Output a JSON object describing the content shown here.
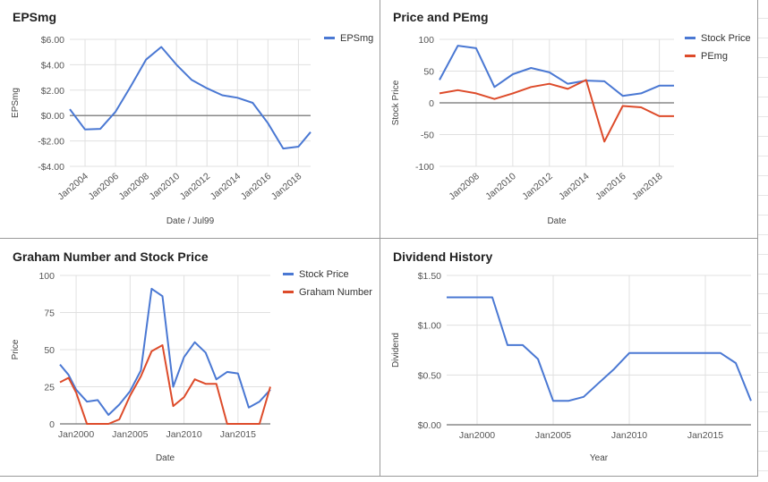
{
  "colors": {
    "blue": "#4a78d3",
    "red": "#dd4b2a"
  },
  "chart_data": [
    {
      "id": "eps",
      "type": "line",
      "title": "EPSmg",
      "xlabel": "Date / Jul99",
      "ylabel": "EPSmg",
      "xlim": [
        2003,
        2018.8
      ],
      "ylim": [
        -4,
        6
      ],
      "y_ticks": [
        {
          "v": 6,
          "label": "$6.00"
        },
        {
          "v": 4,
          "label": "$4.00"
        },
        {
          "v": 2,
          "label": "$2.00"
        },
        {
          "v": 0,
          "label": "$0.00"
        },
        {
          "v": -2,
          "label": "-$2.00"
        },
        {
          "v": -4,
          "label": "-$4.00"
        }
      ],
      "x_ticks": [
        {
          "v": 2004,
          "label": "Jan2004"
        },
        {
          "v": 2006,
          "label": "Jan2006"
        },
        {
          "v": 2008,
          "label": "Jan2008"
        },
        {
          "v": 2010,
          "label": "Jan2010"
        },
        {
          "v": 2012,
          "label": "Jan2012"
        },
        {
          "v": 2014,
          "label": "Jan2014"
        },
        {
          "v": 2016,
          "label": "Jan2016"
        },
        {
          "v": 2018,
          "label": "Jan2018"
        }
      ],
      "x_tick_rotate": true,
      "zero_line": true,
      "series": [
        {
          "name": "EPSmg",
          "color": "#4a78d3",
          "x": [
            2003,
            2004,
            2005,
            2006,
            2007,
            2008,
            2009,
            2010,
            2011,
            2012,
            2013,
            2014,
            2015,
            2016,
            2017,
            2018,
            2018.8
          ],
          "y": [
            0.5,
            -1.1,
            -1.05,
            0.3,
            2.3,
            4.4,
            5.4,
            4.0,
            2.8,
            2.15,
            1.6,
            1.4,
            1.0,
            -0.6,
            -2.6,
            -2.45,
            -1.3
          ]
        }
      ]
    },
    {
      "id": "pe",
      "type": "line",
      "title": "Price and PEmg",
      "xlabel": "Date",
      "ylabel": "Stock Price",
      "xlim": [
        2006,
        2018.8
      ],
      "ylim": [
        -100,
        100
      ],
      "y_ticks": [
        {
          "v": 100,
          "label": "100"
        },
        {
          "v": 50,
          "label": "50"
        },
        {
          "v": 0,
          "label": "0"
        },
        {
          "v": -50,
          "label": "-50"
        },
        {
          "v": -100,
          "label": "-100"
        }
      ],
      "x_ticks": [
        {
          "v": 2008,
          "label": "Jan2008"
        },
        {
          "v": 2010,
          "label": "Jan2010"
        },
        {
          "v": 2012,
          "label": "Jan2012"
        },
        {
          "v": 2014,
          "label": "Jan2014"
        },
        {
          "v": 2016,
          "label": "Jan2016"
        },
        {
          "v": 2018,
          "label": "Jan2018"
        }
      ],
      "x_tick_rotate": true,
      "zero_line": true,
      "series": [
        {
          "name": "Stock Price",
          "color": "#4a78d3",
          "x": [
            2006,
            2007,
            2008,
            2009,
            2010,
            2011,
            2012,
            2013,
            2014,
            2015,
            2016,
            2017,
            2018,
            2018.8
          ],
          "y": [
            36,
            90,
            86,
            25,
            45,
            55,
            48,
            30,
            35,
            34,
            11,
            15,
            27,
            27
          ]
        },
        {
          "name": "PEmg",
          "color": "#dd4b2a",
          "x": [
            2006,
            2007,
            2008,
            2009,
            2010,
            2011,
            2012,
            2013,
            2014,
            2015,
            2016,
            2017,
            2018,
            2018.8
          ],
          "y": [
            15,
            20,
            15,
            6,
            15,
            25,
            30,
            22,
            36,
            -61,
            -5,
            -7,
            -21,
            -21
          ]
        }
      ]
    },
    {
      "id": "graham",
      "type": "line",
      "title": "Graham Number and Stock Price",
      "xlabel": "Date",
      "ylabel": "Price",
      "xlim": [
        1998.5,
        2018
      ],
      "ylim": [
        0,
        100
      ],
      "y_ticks": [
        {
          "v": 100,
          "label": "100"
        },
        {
          "v": 75,
          "label": "75"
        },
        {
          "v": 50,
          "label": "50"
        },
        {
          "v": 25,
          "label": "25"
        },
        {
          "v": 0,
          "label": "0"
        }
      ],
      "x_ticks": [
        {
          "v": 2000,
          "label": "Jan2000"
        },
        {
          "v": 2005,
          "label": "Jan2005"
        },
        {
          "v": 2010,
          "label": "Jan2010"
        },
        {
          "v": 2015,
          "label": "Jan2015"
        }
      ],
      "x_tick_rotate": false,
      "zero_line": false,
      "series": [
        {
          "name": "Stock Price",
          "color": "#4a78d3",
          "x": [
            1998.5,
            1999.3,
            2000,
            2001,
            2002,
            2003,
            2004,
            2005,
            2006,
            2007,
            2008,
            2009,
            2010,
            2011,
            2012,
            2013,
            2014,
            2015,
            2016,
            2017,
            2018
          ],
          "y": [
            40,
            33,
            23,
            15,
            16,
            6,
            13,
            22,
            36,
            91,
            86,
            25,
            45,
            55,
            48,
            30,
            35,
            34,
            11,
            15,
            23
          ]
        },
        {
          "name": "Graham Number",
          "color": "#dd4b2a",
          "x": [
            1998.5,
            1999.3,
            2000,
            2001,
            2002,
            2003,
            2004,
            2005,
            2006,
            2007,
            2008,
            2009,
            2010,
            2011,
            2012,
            2013,
            2014,
            2015,
            2016,
            2017,
            2018
          ],
          "y": [
            28,
            31,
            21,
            0,
            0,
            0,
            3,
            19,
            32,
            49,
            53,
            12,
            18,
            30,
            27,
            27,
            0,
            0,
            0,
            0,
            25
          ]
        }
      ]
    },
    {
      "id": "dividend",
      "type": "line",
      "title": "Dividend History",
      "xlabel": "Year",
      "ylabel": "Dividend",
      "xlim": [
        1998,
        2018
      ],
      "ylim": [
        0,
        1.5
      ],
      "y_ticks": [
        {
          "v": 1.5,
          "label": "$1.50"
        },
        {
          "v": 1.0,
          "label": "$1.00"
        },
        {
          "v": 0.5,
          "label": "$0.50"
        },
        {
          "v": 0,
          "label": "$0.00"
        }
      ],
      "x_ticks": [
        {
          "v": 2000,
          "label": "Jan2000"
        },
        {
          "v": 2005,
          "label": "Jan2005"
        },
        {
          "v": 2010,
          "label": "Jan2010"
        },
        {
          "v": 2015,
          "label": "Jan2015"
        }
      ],
      "x_tick_rotate": false,
      "zero_line": false,
      "series": [
        {
          "name": "Dividend",
          "color": "#4a78d3",
          "x": [
            1998,
            1999,
            2000,
            2001,
            2002,
            2003,
            2004,
            2005,
            2006,
            2007,
            2008,
            2009,
            2010,
            2011,
            2012,
            2013,
            2014,
            2015,
            2016,
            2017,
            2018
          ],
          "y": [
            1.28,
            1.28,
            1.28,
            1.28,
            0.8,
            0.8,
            0.66,
            0.24,
            0.24,
            0.28,
            0.42,
            0.56,
            0.72,
            0.72,
            0.72,
            0.72,
            0.72,
            0.72,
            0.72,
            0.62,
            0.24
          ]
        }
      ]
    }
  ]
}
